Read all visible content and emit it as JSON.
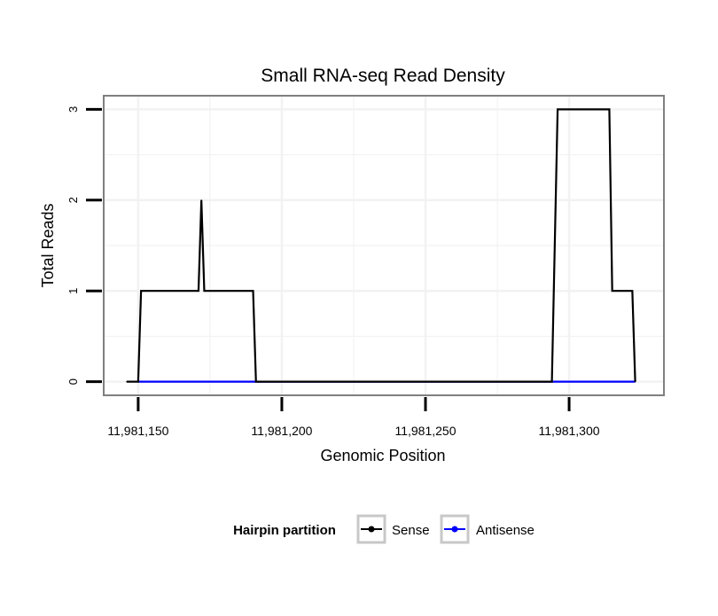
{
  "chart_data": {
    "type": "line",
    "title": "Small RNA-seq Read Density",
    "xlabel": "Genomic Position",
    "ylabel": "Total Reads",
    "xlim": [
      11981138,
      11981333
    ],
    "ylim": [
      -0.15,
      3.15
    ],
    "x_ticks": [
      11981150,
      11981200,
      11981250,
      11981300
    ],
    "x_tick_labels": [
      "11,981,150",
      "11,981,200",
      "11,981,250",
      "11,981,300"
    ],
    "y_ticks": [
      0,
      1,
      2,
      3
    ],
    "y_tick_labels": [
      "0",
      "1",
      "2",
      "3"
    ],
    "grid": true,
    "legend": {
      "title": "Hairpin partition",
      "position": "bottom",
      "entries": [
        "Sense",
        "Antisense"
      ]
    },
    "series": [
      {
        "name": "Sense",
        "color": "#000000",
        "x": [
          11981146,
          11981150,
          11981151,
          11981171,
          11981172,
          11981173,
          11981190,
          11981191,
          11981294,
          11981296,
          11981314,
          11981315,
          11981322,
          11981323
        ],
        "y": [
          0,
          0,
          1,
          1,
          2,
          1,
          1,
          0,
          0,
          3,
          3,
          1,
          1,
          0
        ]
      },
      {
        "name": "Antisense",
        "color": "#0000ff",
        "x": [
          11981150,
          11981323
        ],
        "y": [
          0,
          0
        ]
      }
    ]
  }
}
